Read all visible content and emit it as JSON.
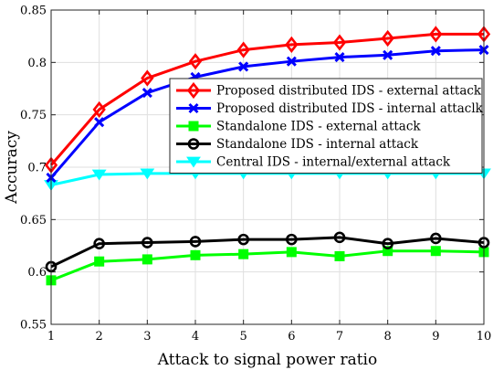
{
  "chart_data": {
    "type": "line",
    "xlabel": "Attack to signal power ratio",
    "ylabel": "Accuracy",
    "xlim": [
      1,
      10
    ],
    "ylim": [
      0.55,
      0.85
    ],
    "xticks": [
      1,
      2,
      3,
      4,
      5,
      6,
      7,
      8,
      9,
      10
    ],
    "yticks": [
      0.55,
      0.6,
      0.65,
      0.7,
      0.75,
      0.8,
      0.85
    ],
    "xtick_labels": [
      "1",
      "2",
      "3",
      "4",
      "5",
      "6",
      "7",
      "8",
      "9",
      "10"
    ],
    "ytick_labels": [
      "0.55",
      "0.6",
      "0.65",
      "0.7",
      "0.75",
      "0.8",
      "0.85"
    ],
    "grid": true,
    "legend_position": "top-right",
    "x": [
      1,
      2,
      3,
      4,
      5,
      6,
      7,
      8,
      9,
      10
    ],
    "series": [
      {
        "name": "Proposed distributed IDS - external attack",
        "color": "#ff0000",
        "marker": "diamond",
        "values": [
          0.702,
          0.755,
          0.785,
          0.801,
          0.812,
          0.817,
          0.819,
          0.823,
          0.827,
          0.827
        ]
      },
      {
        "name": "Proposed distributed IDS - internal attaclk",
        "color": "#0000ff",
        "marker": "x",
        "values": [
          0.69,
          0.743,
          0.771,
          0.786,
          0.796,
          0.801,
          0.805,
          0.807,
          0.811,
          0.812
        ]
      },
      {
        "name": "Standalone IDS - external attack",
        "color": "#00ff00",
        "marker": "square",
        "values": [
          0.592,
          0.61,
          0.612,
          0.616,
          0.617,
          0.619,
          0.615,
          0.62,
          0.62,
          0.619
        ]
      },
      {
        "name": "Standalone IDS - internal attack",
        "color": "#000000",
        "marker": "circle",
        "values": [
          0.605,
          0.627,
          0.628,
          0.629,
          0.631,
          0.631,
          0.633,
          0.627,
          0.632,
          0.628
        ]
      },
      {
        "name": "Central IDS - internal/external attack",
        "color": "#00ffff",
        "marker": "triangle-down",
        "values": [
          0.683,
          0.693,
          0.694,
          0.694,
          0.694,
          0.694,
          0.694,
          0.694,
          0.694,
          0.694
        ]
      }
    ]
  }
}
